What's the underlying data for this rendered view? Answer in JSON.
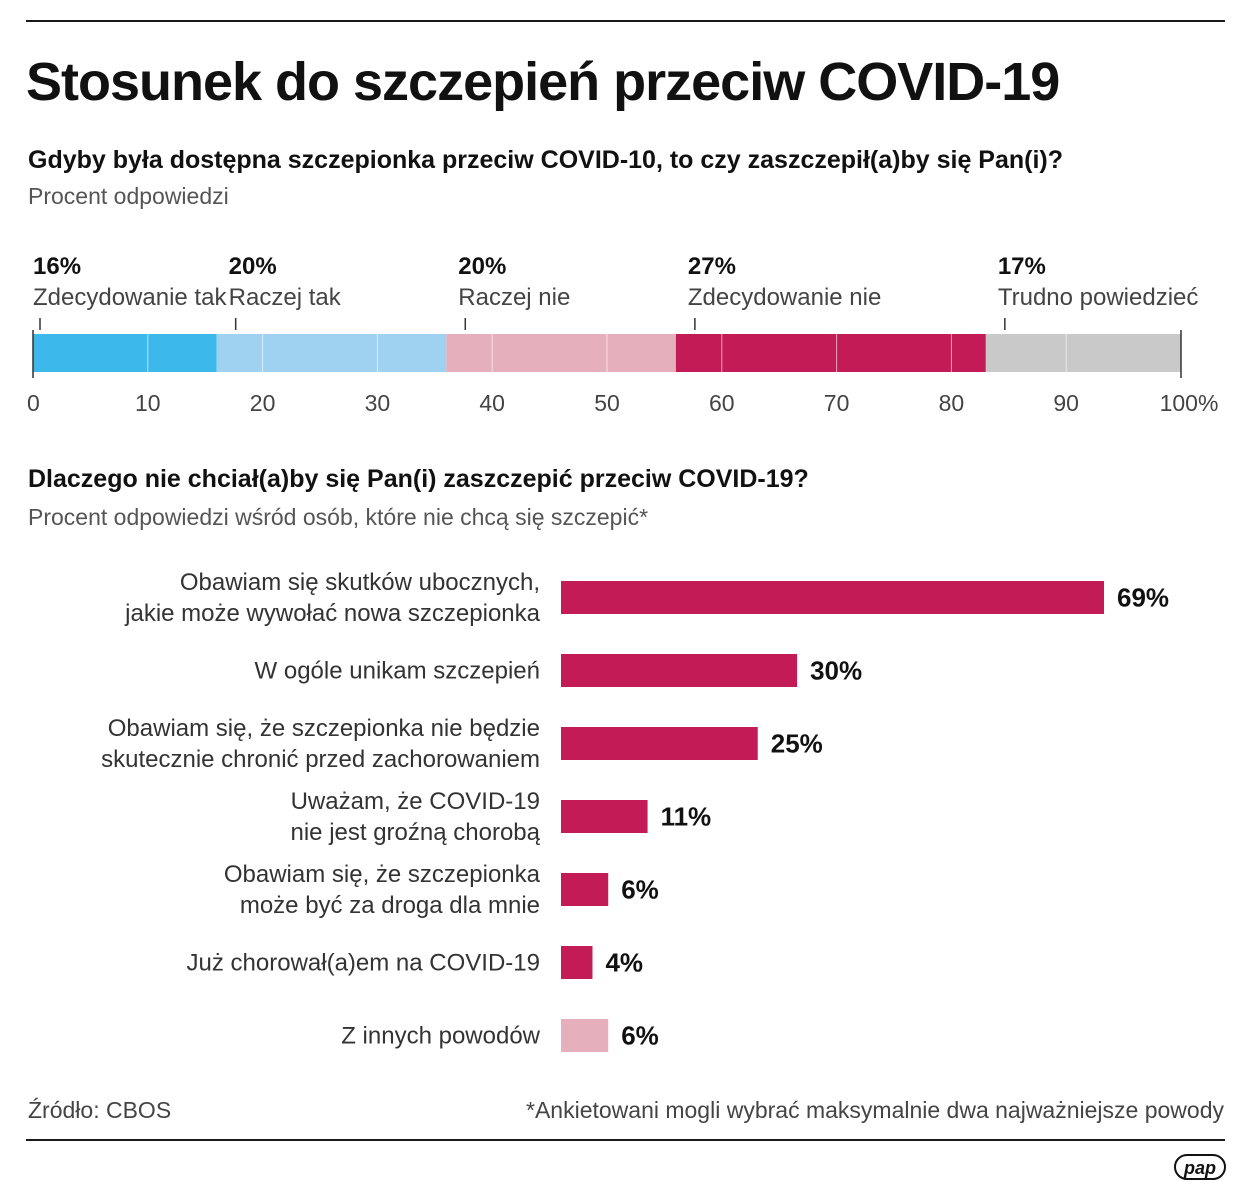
{
  "title": "Stosunek do szczepień przeciw COVID-19",
  "colors": {
    "definitely_yes": "#3db8ea",
    "rather_yes": "#9ed2f0",
    "rather_no": "#e6afbc",
    "definitely_no": "#c21b55",
    "hard_to_say": "#c9c9c9",
    "bar_main": "#c21b55",
    "bar_other": "#e6afbc"
  },
  "chart_data": [
    {
      "type": "bar",
      "orientation": "horizontal-stacked",
      "title": "Gdyby była dostępna szczepionka przeciw COVID-10, to czy zaszczepił(a)by się Pan(i)?",
      "subtitle": "Procent odpowiedzi",
      "series": [
        {
          "name": "Zdecydowanie tak",
          "value": 16,
          "label": "16%",
          "color": "#3db8ea"
        },
        {
          "name": "Raczej tak",
          "value": 20,
          "label": "20%",
          "color": "#9ed2f0"
        },
        {
          "name": "Raczej nie",
          "value": 20,
          "label": "20%",
          "color": "#e6afbc"
        },
        {
          "name": "Zdecydowanie nie",
          "value": 27,
          "label": "27%",
          "color": "#c21b55"
        },
        {
          "name": "Trudno powiedzieć",
          "value": 17,
          "label": "17%",
          "color": "#c9c9c9"
        }
      ],
      "xlim": [
        0,
        100
      ],
      "ticks": [
        0,
        10,
        20,
        30,
        40,
        50,
        60,
        70,
        80,
        90,
        100
      ],
      "tick_labels": [
        "0",
        "10",
        "20",
        "30",
        "40",
        "50",
        "60",
        "70",
        "80",
        "90",
        "100%"
      ]
    },
    {
      "type": "bar",
      "orientation": "horizontal",
      "title": "Dlaczego nie chciał(a)by się Pan(i) zaszczepić przeciw COVID-19?",
      "subtitle": "Procent odpowiedzi wśród osób, które nie chcą się szczepić*",
      "categories": [
        [
          "Obawiam się skutków ubocznych,",
          "jakie może wywołać nowa szczepionka"
        ],
        [
          "W ogóle unikam szczepień"
        ],
        [
          "Obawiam się, że szczepionka nie będzie",
          "skutecznie chronić przed zachorowaniem"
        ],
        [
          "Uważam, że COVID-19",
          "nie jest groźną chorobą"
        ],
        [
          "Obawiam się, że szczepionka",
          "może być za droga dla mnie"
        ],
        [
          "Już chorował(a)em na COVID-19"
        ],
        [
          "Z innych powodów"
        ]
      ],
      "values": [
        69,
        30,
        25,
        11,
        6,
        4,
        6
      ],
      "value_labels": [
        "69%",
        "30%",
        "25%",
        "11%",
        "6%",
        "4%",
        "6%"
      ],
      "colors": [
        "#c21b55",
        "#c21b55",
        "#c21b55",
        "#c21b55",
        "#c21b55",
        "#c21b55",
        "#e6afbc"
      ],
      "xlim": [
        0,
        69
      ]
    }
  ],
  "footer": {
    "source": "Źródło: CBOS",
    "note": "*Ankietowani mogli wybrać maksymalnie dwa najważniejsze powody"
  },
  "logo": "pap"
}
